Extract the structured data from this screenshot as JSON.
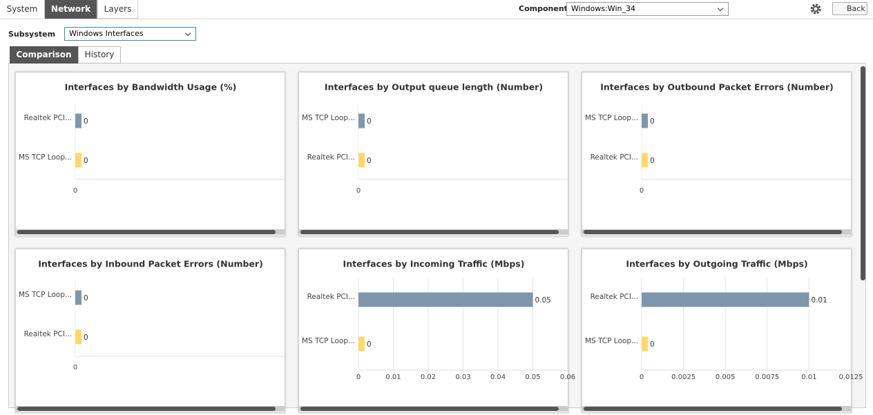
{
  "tabs": [
    "System",
    "Network",
    "Layers"
  ],
  "component": {
    "label": "Component",
    "value": "Windows:Win_34"
  },
  "back": "Back",
  "subsystem": {
    "label": "Subsystem",
    "value": "Windows Interfaces"
  },
  "subtabs": [
    "Comparison",
    "History"
  ],
  "charts": [
    {
      "type": "bar",
      "title": "Interfaces by Bandwidth Usage (%)",
      "categories": [
        "Realtek PCI...",
        "MS TCP Loop..."
      ],
      "values": [
        0,
        0
      ],
      "colors": [
        "#7f96ad",
        "#ffd966"
      ],
      "xticks": [
        0
      ]
    },
    {
      "type": "bar",
      "title": "Interfaces by Output queue length (Number)",
      "categories": [
        "MS TCP Loop...",
        "Realtek PCI..."
      ],
      "values": [
        0,
        0
      ],
      "colors": [
        "#7f96ad",
        "#ffd966"
      ],
      "xticks": [
        0
      ]
    },
    {
      "type": "bar",
      "title": "Interfaces by Outbound Packet Errors (Number)",
      "categories": [
        "MS TCP Loop...",
        "Realtek PCI..."
      ],
      "values": [
        0,
        0
      ],
      "colors": [
        "#7f96ad",
        "#ffd966"
      ],
      "xticks": [
        0
      ]
    },
    {
      "type": "bar",
      "title": "Interfaces by Inbound Packet Errors (Number)",
      "categories": [
        "MS TCP Loop...",
        "Realtek PCI..."
      ],
      "values": [
        0,
        0
      ],
      "colors": [
        "#7f96ad",
        "#ffd966"
      ],
      "xticks": [
        0
      ]
    },
    {
      "type": "bar",
      "title": "Interfaces by Incoming Traffic (Mbps)",
      "categories": [
        "Realtek PCI...",
        "MS TCP Loop..."
      ],
      "values": [
        0.05,
        0
      ],
      "colors": [
        "#7f96ad",
        "#ffd966"
      ],
      "xlim": [
        0,
        0.06
      ],
      "xticks": [
        0,
        0.01,
        0.02,
        0.03,
        0.04,
        0.05,
        0.06
      ],
      "grid": true
    },
    {
      "type": "bar",
      "title": "Interfaces by Outgoing Traffic (Mbps)",
      "categories": [
        "Realtek PCI...",
        "MS TCP Loop..."
      ],
      "values": [
        0.01,
        0
      ],
      "colors": [
        "#7f96ad",
        "#ffd966"
      ],
      "xlim": [
        0,
        0.0125
      ],
      "xticks": [
        0,
        0.0025,
        0.005,
        0.0075,
        0.01,
        0.0125
      ],
      "grid": true
    }
  ]
}
